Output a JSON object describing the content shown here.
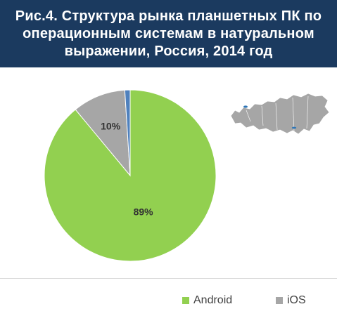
{
  "title": "Рис.4. Структура рынка планшетных ПК по операционным системам в натуральном выражении, Россия, 2014 год",
  "chart_data": {
    "type": "pie",
    "title": "Рис.4. Структура рынка планшетных ПК по операционным системам в натуральном выражении, Россия, 2014 год",
    "slices": [
      {
        "label": "Android",
        "value": 89,
        "display": "89%",
        "color": "#92d050"
      },
      {
        "label": "iOS",
        "value": 10,
        "display": "10%",
        "color": "#a6a6a6"
      },
      {
        "label": "",
        "value": 1,
        "display": "",
        "color": "#4f81bd"
      }
    ],
    "legend": {
      "position": "bottom-right",
      "items": [
        "Android",
        "iOS"
      ]
    }
  },
  "map": {
    "icon": "russia-map-icon",
    "color": "#a6a6a6",
    "marker_color": "#2e75b6"
  }
}
